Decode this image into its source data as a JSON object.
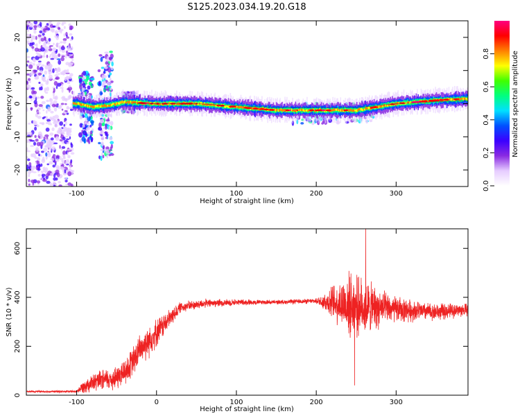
{
  "title": "S125.2023.034.19.20.G18",
  "chart_data": [
    {
      "type": "heatmap",
      "xlabel": "Height of straight line (km)",
      "ylabel": "Frequency (Hz)",
      "xlim": [
        -163,
        390
      ],
      "ylim": [
        -25,
        25
      ],
      "x_ticks": [
        -100,
        0,
        100,
        200,
        300
      ],
      "y_ticks": [
        -20,
        -10,
        0,
        10,
        20
      ],
      "grid": false,
      "colorbar": {
        "label": "Normalized spectral amplitude",
        "range": [
          0,
          1
        ],
        "ticks": [
          "0.0",
          "0.2",
          "0.4",
          "0.6",
          "0.8"
        ],
        "colormap": [
          "#ffffff",
          "#e6ccff",
          "#8a2be2",
          "#3b00ff",
          "#0050ff",
          "#00e0ff",
          "#00ff80",
          "#40ff00",
          "#ffff00",
          "#ff8000",
          "#ff0000",
          "#ff0080"
        ]
      },
      "ridge_frequency": [
        [
          -100,
          0.0
        ],
        [
          -80,
          -1.0
        ],
        [
          -60,
          -0.5
        ],
        [
          -40,
          0.5
        ],
        [
          -20,
          0.2
        ],
        [
          0,
          0.0
        ],
        [
          50,
          0.0
        ],
        [
          100,
          -1.0
        ],
        [
          150,
          -2.0
        ],
        [
          200,
          -2.0
        ],
        [
          250,
          -2.0
        ],
        [
          300,
          0.0
        ],
        [
          350,
          1.0
        ],
        [
          390,
          1.5
        ]
      ],
      "sidebands": [
        {
          "x": [
            -96,
            -80
          ],
          "freq": [
            -11,
            10
          ]
        },
        {
          "x": [
            -72,
            -55
          ],
          "freq": [
            -16,
            16
          ]
        },
        {
          "x": [
            -45,
            -25
          ],
          "freq": [
            -3,
            3
          ]
        },
        {
          "x": [
            170,
            275
          ],
          "freq": [
            -4,
            2
          ]
        }
      ],
      "noise_region_x": [
        -163,
        -105
      ]
    },
    {
      "type": "line",
      "xlabel": "Height of straight line (km)",
      "ylabel": "SNR (10 * v/v)",
      "xlim": [
        -163,
        390
      ],
      "ylim": [
        0,
        680
      ],
      "x_ticks": [
        -100,
        0,
        100,
        200,
        300
      ],
      "y_ticks": [
        0,
        200,
        400,
        600
      ],
      "grid": false,
      "series": [
        {
          "color": "#ee2222",
          "baseline": [
            [
              -163,
              15
            ],
            [
              -100,
              15
            ],
            [
              -90,
              40
            ],
            [
              -70,
              60
            ],
            [
              -50,
              70
            ],
            [
              -35,
              110
            ],
            [
              -20,
              190
            ],
            [
              -5,
              240
            ],
            [
              10,
              290
            ],
            [
              30,
              360
            ],
            [
              60,
              375
            ],
            [
              100,
              380
            ],
            [
              150,
              380
            ],
            [
              200,
              385
            ],
            [
              220,
              380
            ],
            [
              260,
              360
            ],
            [
              300,
              350
            ],
            [
              350,
              340
            ],
            [
              390,
              350
            ]
          ],
          "noise_amplitude": [
            [
              -163,
              4
            ],
            [
              -100,
              6
            ],
            [
              -90,
              35
            ],
            [
              -30,
              70
            ],
            [
              -10,
              80
            ],
            [
              30,
              25
            ],
            [
              100,
              15
            ],
            [
              150,
              10
            ],
            [
              200,
              12
            ],
            [
              215,
              60
            ],
            [
              240,
              150
            ],
            [
              262,
              130
            ],
            [
              290,
              70
            ],
            [
              330,
              45
            ],
            [
              390,
              30
            ]
          ],
          "peaks": [
            [
              262,
              680
            ],
            [
              248,
              630
            ],
            [
              248,
              40
            ]
          ]
        }
      ]
    }
  ]
}
